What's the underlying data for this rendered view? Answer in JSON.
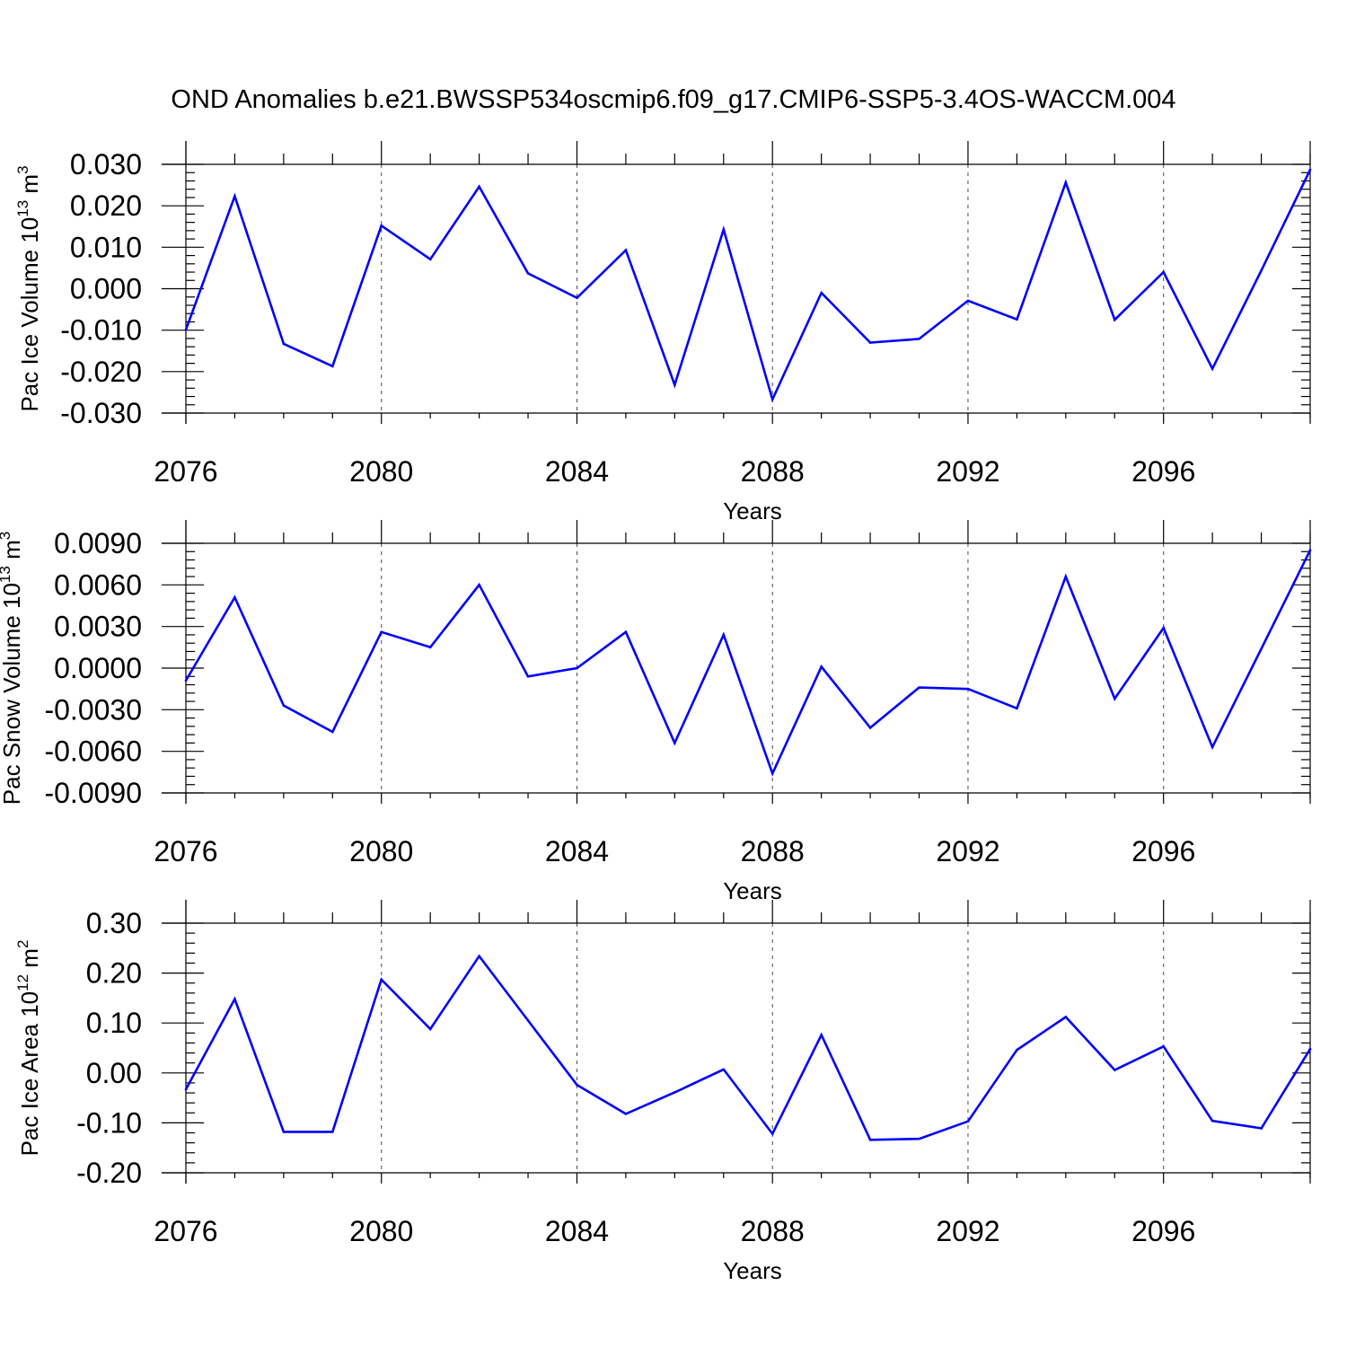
{
  "title": "OND Anomalies b.e21.BWSSP534oscmip6.f09_g17.CMIP6-SSP5-3.4OS-WACCM.004",
  "colors": {
    "line": "#0000ff",
    "axis": "#000000",
    "background": "#ffffff"
  },
  "chart_data": [
    {
      "type": "line",
      "ylabel": "Pac Ice Volume 10",
      "ylabel_exp": "13",
      "ylabel_unit": " m",
      "ylabel_unit_exp": "3",
      "xlabel": "Years",
      "xlim": [
        2076,
        2099
      ],
      "ylim": [
        -0.03,
        0.03
      ],
      "x_ticks": [
        2076,
        2080,
        2084,
        2088,
        2092,
        2096
      ],
      "x_tick_labels": [
        "2076",
        "2080",
        "2084",
        "2088",
        "2092",
        "2096"
      ],
      "y_ticks": [
        -0.03,
        -0.02,
        -0.01,
        0.0,
        0.01,
        0.02,
        0.03
      ],
      "y_tick_labels": [
        "-0.030",
        "-0.020",
        "-0.010",
        "0.000",
        "0.010",
        "0.020",
        "0.030"
      ],
      "grid": "vertical dashed at major x ticks",
      "x": [
        2076,
        2077,
        2078,
        2079,
        2080,
        2081,
        2082,
        2083,
        2084,
        2085,
        2086,
        2087,
        2088,
        2089,
        2090,
        2091,
        2092,
        2093,
        2094,
        2095,
        2096,
        2097,
        2098,
        2099
      ],
      "series": [
        {
          "values": [
            -0.0099,
            0.0223,
            -0.0133,
            -0.0187,
            0.0152,
            0.0071,
            0.0246,
            0.0037,
            -0.0022,
            0.0093,
            -0.0232,
            0.0143,
            -0.0267,
            -0.001,
            -0.013,
            -0.0121,
            -0.0029,
            -0.0074,
            0.0256,
            -0.0075,
            0.004,
            -0.0193,
            0.0044,
            0.0287
          ]
        }
      ]
    },
    {
      "type": "line",
      "ylabel": "Pac Snow Volume 10",
      "ylabel_exp": "13",
      "ylabel_unit": " m",
      "ylabel_unit_exp": "3",
      "xlabel": "Years",
      "xlim": [
        2076,
        2099
      ],
      "ylim": [
        -0.009,
        0.009
      ],
      "x_ticks": [
        2076,
        2080,
        2084,
        2088,
        2092,
        2096
      ],
      "x_tick_labels": [
        "2076",
        "2080",
        "2084",
        "2088",
        "2092",
        "2096"
      ],
      "y_ticks": [
        -0.009,
        -0.006,
        -0.003,
        0.0,
        0.003,
        0.006,
        0.009
      ],
      "y_tick_labels": [
        "-0.0090",
        "-0.0060",
        "-0.0030",
        "0.0000",
        "0.0030",
        "0.0060",
        "0.0090"
      ],
      "grid": "vertical dashed at major x ticks",
      "x": [
        2076,
        2077,
        2078,
        2079,
        2080,
        2081,
        2082,
        2083,
        2084,
        2085,
        2086,
        2087,
        2088,
        2089,
        2090,
        2091,
        2092,
        2093,
        2094,
        2095,
        2096,
        2097,
        2098,
        2099
      ],
      "series": [
        {
          "values": [
            -0.0009,
            0.0051,
            -0.0027,
            -0.0046,
            0.0026,
            0.0015,
            0.006,
            -0.0006,
            0.0,
            0.0026,
            -0.0054,
            0.0024,
            -0.0076,
            0.0001,
            -0.0043,
            -0.0014,
            -0.0015,
            -0.0029,
            0.0066,
            -0.0022,
            0.0029,
            -0.0057,
            0.0014,
            0.0085
          ]
        }
      ]
    },
    {
      "type": "line",
      "ylabel": "Pac Ice Area 10",
      "ylabel_exp": "12",
      "ylabel_unit": " m",
      "ylabel_unit_exp": "2",
      "xlabel": "Years",
      "xlim": [
        2076,
        2099
      ],
      "ylim": [
        -0.2,
        0.3
      ],
      "x_ticks": [
        2076,
        2080,
        2084,
        2088,
        2092,
        2096
      ],
      "x_tick_labels": [
        "2076",
        "2080",
        "2084",
        "2088",
        "2092",
        "2096"
      ],
      "y_ticks": [
        -0.2,
        -0.1,
        0.0,
        0.1,
        0.2,
        0.3
      ],
      "y_tick_labels": [
        "-0.20",
        "-0.10",
        "0.00",
        "0.10",
        "0.20",
        "0.30"
      ],
      "grid": "vertical dashed at major x ticks",
      "x": [
        2076,
        2077,
        2078,
        2079,
        2080,
        2081,
        2082,
        2083,
        2084,
        2085,
        2086,
        2087,
        2088,
        2089,
        2090,
        2091,
        2092,
        2093,
        2094,
        2095,
        2096,
        2097,
        2098,
        2099
      ],
      "series": [
        {
          "values": [
            -0.033,
            0.148,
            -0.118,
            -0.118,
            0.187,
            0.088,
            0.234,
            0.105,
            -0.024,
            -0.082,
            -0.039,
            0.007,
            -0.122,
            0.076,
            -0.134,
            -0.132,
            -0.097,
            0.046,
            0.112,
            0.006,
            0.053,
            -0.096,
            -0.111,
            0.048
          ]
        }
      ]
    }
  ]
}
